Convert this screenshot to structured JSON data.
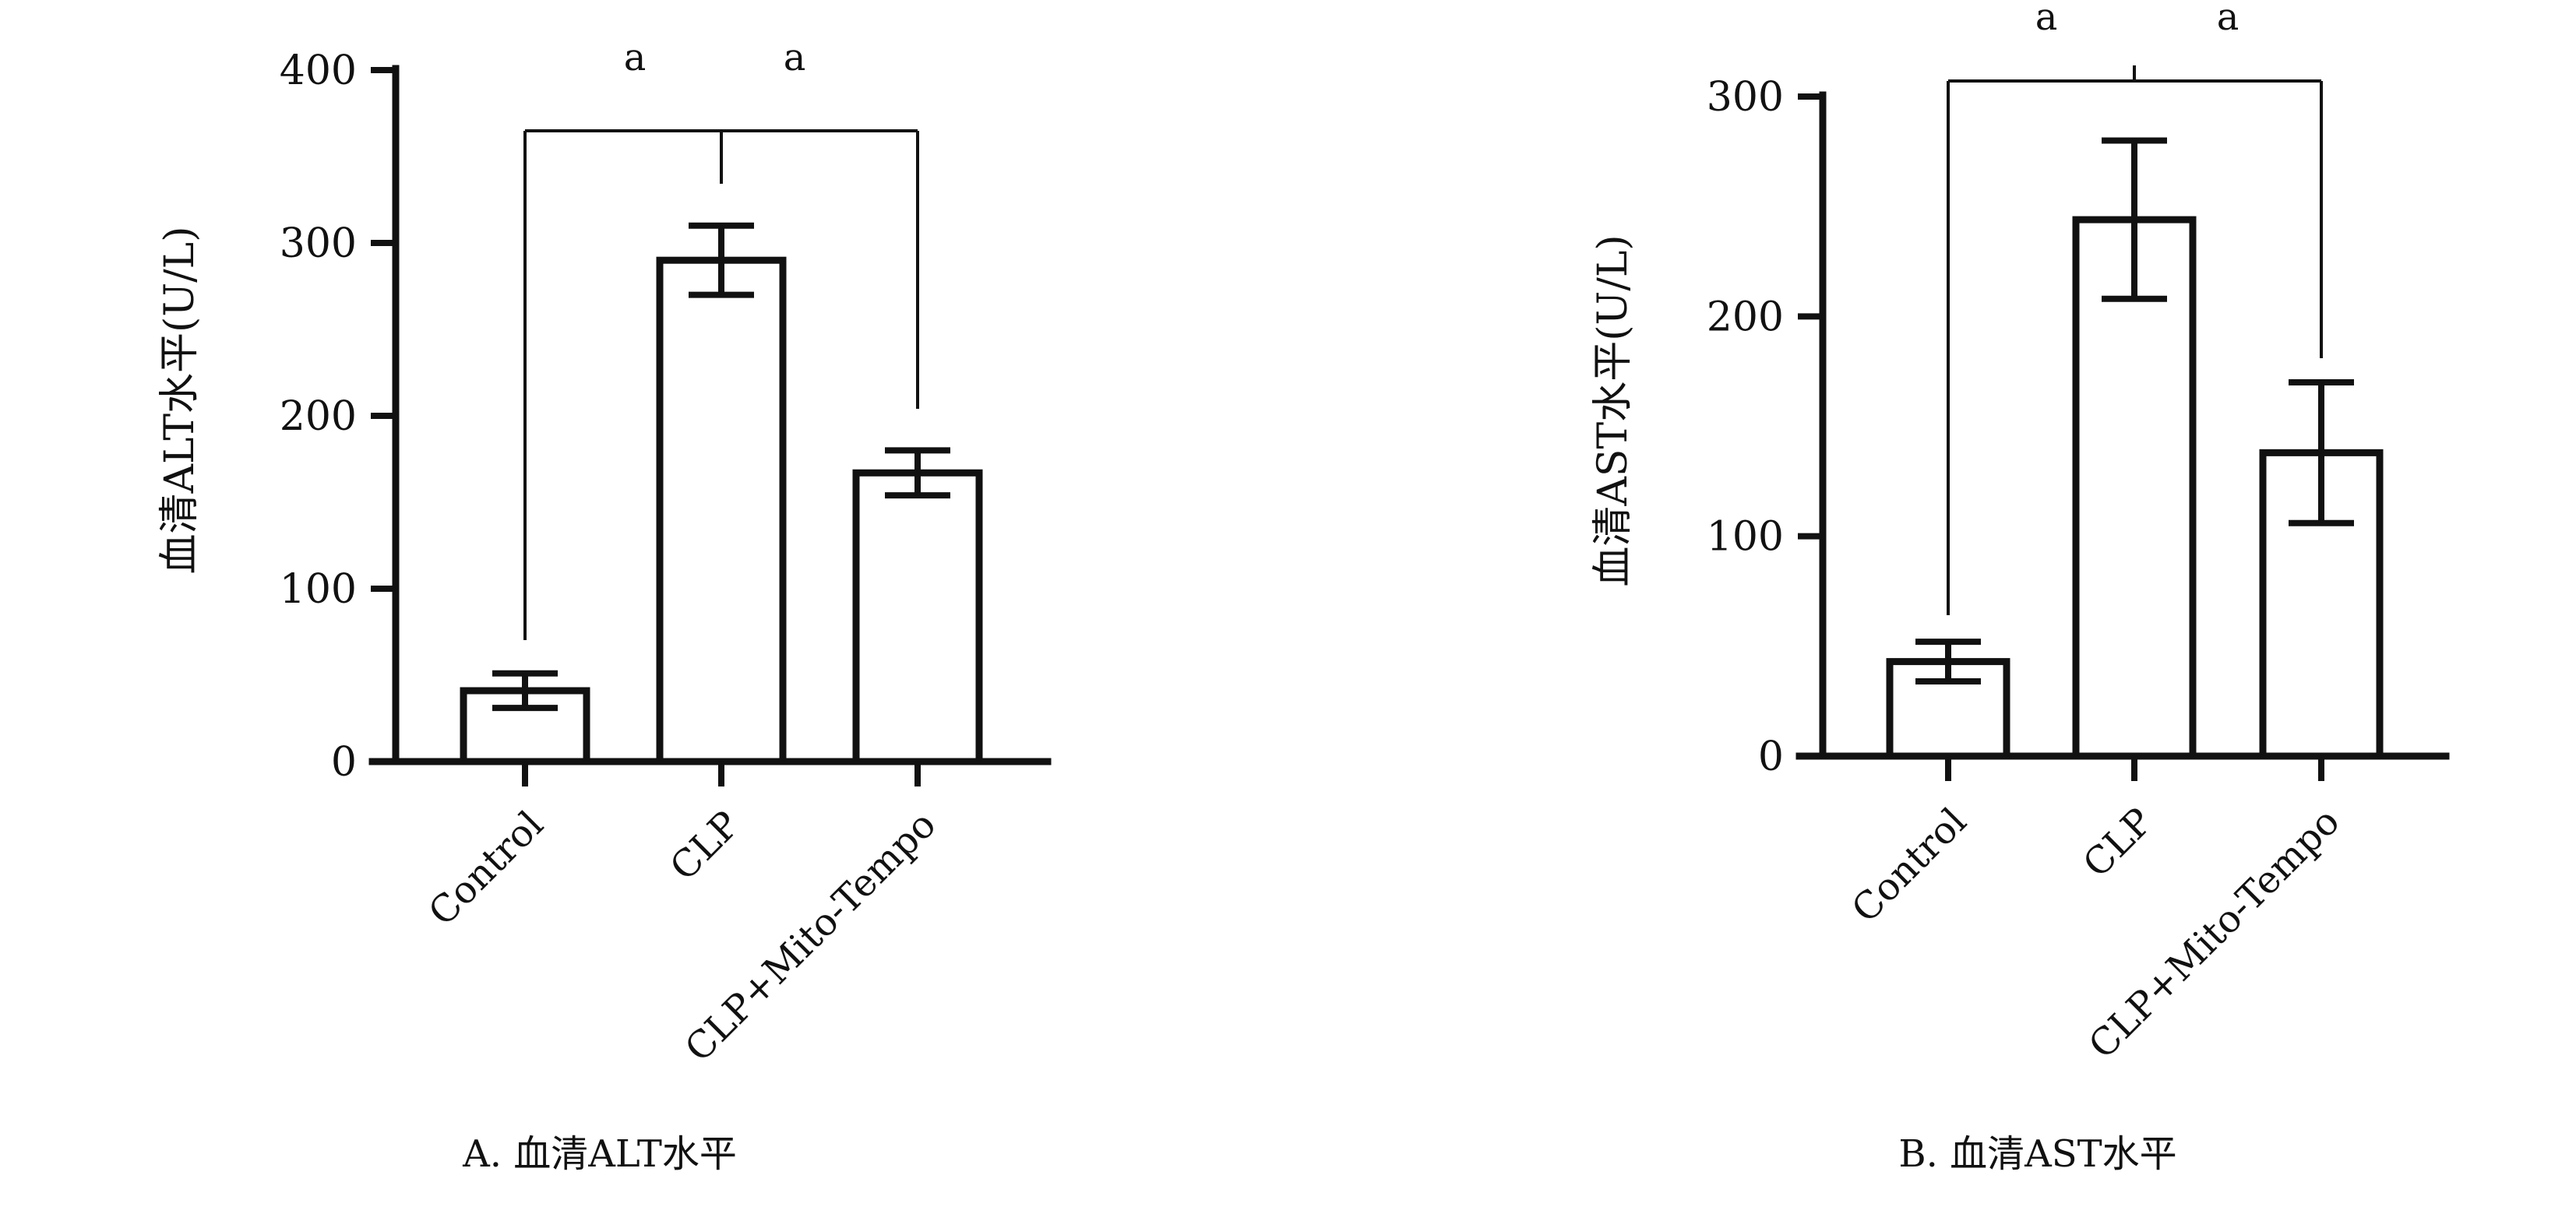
{
  "chart_data": [
    {
      "type": "bar",
      "caption": "A. 血清ALT水平",
      "ylabel": "血清ALT水平(U/L)",
      "categories": [
        "Control",
        "CLP",
        "CLP+Mito-Tempo"
      ],
      "values": [
        41,
        290,
        167
      ],
      "errors": [
        10,
        20,
        13
      ],
      "ylim": [
        0,
        400
      ],
      "yticks": [
        "0",
        "100",
        "200",
        "300",
        "400"
      ],
      "significance": [
        "a",
        "a"
      ]
    },
    {
      "type": "bar",
      "caption": "B. 血清AST水平",
      "ylabel": "血清AST水平(U/L)",
      "categories": [
        "Control",
        "CLP",
        "CLP+Mito-Tempo"
      ],
      "values": [
        43,
        244,
        138
      ],
      "errors": [
        9,
        36,
        32
      ],
      "ylim": [
        0,
        300
      ],
      "yticks": [
        "0",
        "100",
        "200",
        "300"
      ],
      "significance": [
        "a",
        "a"
      ]
    }
  ]
}
